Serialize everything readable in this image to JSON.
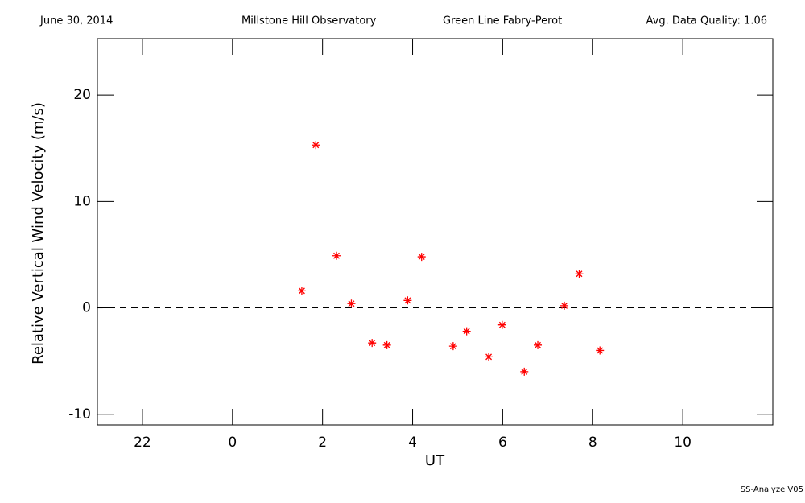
{
  "chart_data": {
    "type": "scatter",
    "header": [
      "June 30, 2014",
      "Millstone Hill Observatory",
      "Green Line Fabry-Perot",
      "Avg. Data Quality: 1.06"
    ],
    "footer": "SS-Analyze V05",
    "x_label": "UT",
    "y_label": "Relative Vertical Wind Velocity (m/s)",
    "xlim": [
      -3,
      12
    ],
    "ylim": [
      -11,
      25.3
    ],
    "xticks": [
      {
        "value": -2,
        "label": "22"
      },
      0,
      2,
      4,
      6,
      8,
      10
    ],
    "yticks": [
      -10,
      0,
      10,
      20
    ],
    "reference_line": 0,
    "series": [
      {
        "color": "#ff0000",
        "x": [
          1.54,
          1.85,
          2.31,
          2.64,
          3.1,
          3.43,
          3.89,
          4.2,
          4.9,
          5.2,
          5.69,
          5.99,
          6.48,
          6.78,
          7.37,
          7.7,
          8.16
        ],
        "values": [
          1.6,
          15.3,
          4.9,
          0.4,
          -3.3,
          -3.5,
          0.7,
          4.8,
          -3.6,
          -2.2,
          -4.6,
          -1.6,
          -6.0,
          -3.5,
          0.2,
          3.2,
          -4.0
        ]
      }
    ]
  }
}
